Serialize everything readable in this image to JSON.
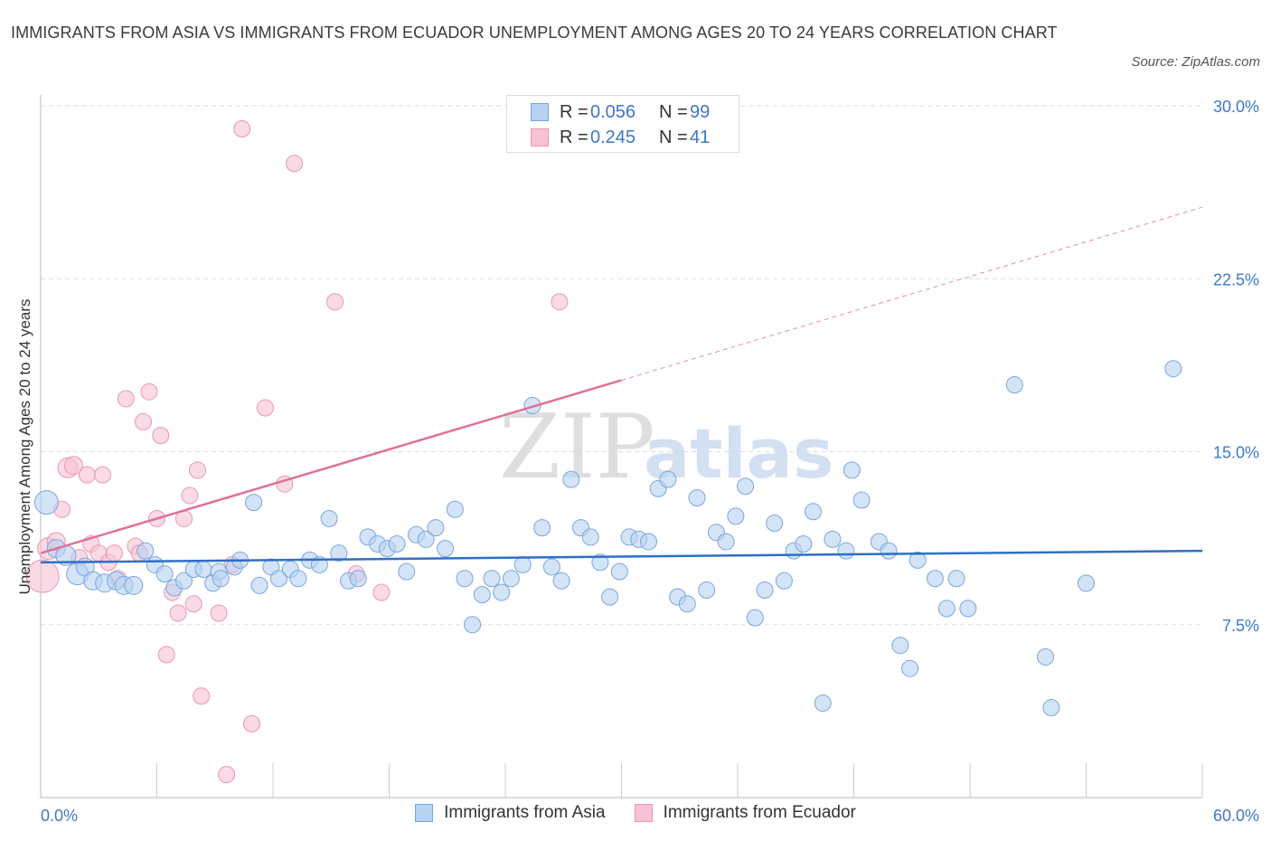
{
  "title": "IMMIGRANTS FROM ASIA VS IMMIGRANTS FROM ECUADOR UNEMPLOYMENT AMONG AGES 20 TO 24 YEARS CORRELATION CHART",
  "source": "Source: ZipAtlas.com",
  "watermark": {
    "zip": "ZIP",
    "atlas": "atlas"
  },
  "legend": {
    "r_label": "R =",
    "n_label": "N =",
    "asia": {
      "r": "0.056",
      "n": "99"
    },
    "ecuador": {
      "r": "0.245",
      "n": "41"
    }
  },
  "colors": {
    "asia_fill": "#b7d2f2",
    "asia_stroke": "#7aa6dc",
    "asia_line": "#2f6fc6",
    "ecuador_fill": "#f7c3d3",
    "ecuador_stroke": "#e897b1",
    "ecuador_line": "#e07098",
    "axis_label": "#3d78c8"
  },
  "chart_data": {
    "type": "scatter",
    "title": "IMMIGRANTS FROM ASIA VS IMMIGRANTS FROM ECUADOR UNEMPLOYMENT AMONG AGES 20 TO 24 YEARS CORRELATION CHART",
    "xlabel": "",
    "ylabel": "Unemployment Among Ages 20 to 24 years",
    "xlim": [
      0,
      60
    ],
    "ylim": [
      0,
      30
    ],
    "x_tick_labels": [
      "0.0%",
      "60.0%"
    ],
    "y_ticks": [
      7.5,
      15.0,
      22.5,
      30.0
    ],
    "y_tick_labels": [
      "7.5%",
      "15.0%",
      "22.5%",
      "30.0%"
    ],
    "grid": true,
    "legend_position": "bottom",
    "series": [
      {
        "name": "Immigrants from Asia",
        "r": 0.056,
        "n": 99,
        "trend": {
          "x": [
            0,
            60
          ],
          "y": [
            10.2,
            10.7
          ]
        },
        "points": [
          [
            0.3,
            12.8,
            13
          ],
          [
            0.8,
            10.8,
            10
          ],
          [
            1.3,
            10.5,
            11
          ],
          [
            1.9,
            9.7,
            12
          ],
          [
            2.3,
            10.0,
            10
          ],
          [
            2.7,
            9.4,
            10
          ],
          [
            3.3,
            9.3,
            10
          ],
          [
            3.9,
            9.4,
            10
          ],
          [
            4.3,
            9.2,
            10
          ],
          [
            4.8,
            9.2,
            10
          ],
          [
            5.4,
            10.7,
            9
          ],
          [
            5.9,
            10.1,
            9
          ],
          [
            6.4,
            9.7,
            9
          ],
          [
            6.9,
            9.1,
            9
          ],
          [
            7.4,
            9.4,
            9
          ],
          [
            7.9,
            9.9,
            9
          ],
          [
            8.4,
            9.9,
            9
          ],
          [
            8.9,
            9.3,
            9
          ],
          [
            9.2,
            9.8,
            9
          ],
          [
            9.3,
            9.5,
            9
          ],
          [
            10.0,
            10.0,
            9
          ],
          [
            10.3,
            10.3,
            9
          ],
          [
            11.0,
            12.8,
            9
          ],
          [
            11.3,
            9.2,
            9
          ],
          [
            11.9,
            10.0,
            9
          ],
          [
            12.3,
            9.5,
            9
          ],
          [
            12.9,
            9.9,
            9
          ],
          [
            13.3,
            9.5,
            9
          ],
          [
            13.9,
            10.3,
            9
          ],
          [
            14.4,
            10.1,
            9
          ],
          [
            14.9,
            12.1,
            9
          ],
          [
            15.4,
            10.6,
            9
          ],
          [
            15.9,
            9.4,
            9
          ],
          [
            16.4,
            9.5,
            9
          ],
          [
            16.9,
            11.3,
            9
          ],
          [
            17.4,
            11.0,
            9
          ],
          [
            17.9,
            10.8,
            9
          ],
          [
            18.4,
            11.0,
            9
          ],
          [
            18.9,
            9.8,
            9
          ],
          [
            19.4,
            11.4,
            9
          ],
          [
            19.9,
            11.2,
            9
          ],
          [
            20.4,
            11.7,
            9
          ],
          [
            20.9,
            10.8,
            9
          ],
          [
            21.4,
            12.5,
            9
          ],
          [
            21.9,
            9.5,
            9
          ],
          [
            22.3,
            7.5,
            9
          ],
          [
            22.8,
            8.8,
            9
          ],
          [
            23.3,
            9.5,
            9
          ],
          [
            23.8,
            8.9,
            9
          ],
          [
            24.3,
            9.5,
            9
          ],
          [
            24.9,
            10.1,
            9
          ],
          [
            25.4,
            17.0,
            9
          ],
          [
            25.9,
            11.7,
            9
          ],
          [
            26.4,
            10.0,
            9
          ],
          [
            26.9,
            9.4,
            9
          ],
          [
            27.4,
            13.8,
            9
          ],
          [
            27.9,
            11.7,
            9
          ],
          [
            28.4,
            11.3,
            9
          ],
          [
            28.9,
            10.2,
            9
          ],
          [
            29.4,
            8.7,
            9
          ],
          [
            29.9,
            9.8,
            9
          ],
          [
            30.4,
            11.3,
            9
          ],
          [
            30.9,
            11.2,
            9
          ],
          [
            31.4,
            11.1,
            9
          ],
          [
            31.9,
            13.4,
            9
          ],
          [
            32.4,
            13.8,
            9
          ],
          [
            32.9,
            8.7,
            9
          ],
          [
            33.4,
            8.4,
            9
          ],
          [
            33.9,
            13.0,
            9
          ],
          [
            34.4,
            9.0,
            9
          ],
          [
            34.9,
            11.5,
            9
          ],
          [
            35.4,
            11.1,
            9
          ],
          [
            35.9,
            12.2,
            9
          ],
          [
            36.4,
            13.5,
            9
          ],
          [
            36.9,
            7.8,
            9
          ],
          [
            37.4,
            9.0,
            9
          ],
          [
            37.9,
            11.9,
            9
          ],
          [
            38.4,
            9.4,
            9
          ],
          [
            38.9,
            10.7,
            9
          ],
          [
            39.4,
            11.0,
            9
          ],
          [
            39.9,
            12.4,
            9
          ],
          [
            40.4,
            4.1,
            9
          ],
          [
            40.9,
            11.2,
            9
          ],
          [
            41.6,
            10.7,
            9
          ],
          [
            41.9,
            14.2,
            9
          ],
          [
            42.4,
            12.9,
            9
          ],
          [
            43.3,
            11.1,
            9
          ],
          [
            43.8,
            10.7,
            9
          ],
          [
            44.4,
            6.6,
            9
          ],
          [
            44.9,
            5.6,
            9
          ],
          [
            45.3,
            10.3,
            9
          ],
          [
            46.2,
            9.5,
            9
          ],
          [
            46.8,
            8.2,
            9
          ],
          [
            47.3,
            9.5,
            9
          ],
          [
            47.9,
            8.2,
            9
          ],
          [
            50.3,
            17.9,
            9
          ],
          [
            51.9,
            6.1,
            9
          ],
          [
            52.2,
            3.9,
            9
          ],
          [
            54.0,
            9.3,
            9
          ],
          [
            58.5,
            18.6,
            9
          ]
        ]
      },
      {
        "name": "Immigrants from Ecuador",
        "r": 0.245,
        "n": 41,
        "trend": {
          "x": [
            0,
            30
          ],
          "y": [
            10.6,
            18.1
          ]
        },
        "trend_ext": {
          "x": [
            30,
            60
          ],
          "y": [
            18.1,
            25.6
          ]
        },
        "points": [
          [
            0.1,
            9.6,
            18
          ],
          [
            0.4,
            10.8,
            12
          ],
          [
            0.8,
            11.1,
            10
          ],
          [
            1.1,
            12.5,
            9
          ],
          [
            1.4,
            14.3,
            11
          ],
          [
            1.7,
            14.4,
            10
          ],
          [
            2.0,
            10.4,
            9
          ],
          [
            2.4,
            14.0,
            9
          ],
          [
            2.6,
            11.0,
            9
          ],
          [
            3.0,
            10.6,
            9
          ],
          [
            3.2,
            14.0,
            9
          ],
          [
            3.5,
            10.2,
            9
          ],
          [
            3.8,
            10.6,
            9
          ],
          [
            4.0,
            9.5,
            9
          ],
          [
            4.4,
            17.3,
            9
          ],
          [
            4.9,
            10.9,
            9
          ],
          [
            5.1,
            10.6,
            9
          ],
          [
            5.3,
            16.3,
            9
          ],
          [
            5.6,
            17.6,
            9
          ],
          [
            6.0,
            12.1,
            9
          ],
          [
            6.2,
            15.7,
            9
          ],
          [
            6.5,
            6.2,
            9
          ],
          [
            6.8,
            8.9,
            9
          ],
          [
            7.1,
            8.0,
            9
          ],
          [
            7.4,
            12.1,
            9
          ],
          [
            7.7,
            13.1,
            9
          ],
          [
            7.9,
            8.4,
            9
          ],
          [
            8.1,
            14.2,
            9
          ],
          [
            8.3,
            4.4,
            9
          ],
          [
            9.2,
            8.0,
            9
          ],
          [
            9.6,
            1.0,
            9
          ],
          [
            9.9,
            10.1,
            9
          ],
          [
            10.4,
            29.0,
            9
          ],
          [
            10.9,
            3.2,
            9
          ],
          [
            11.6,
            16.9,
            9
          ],
          [
            12.6,
            13.6,
            9
          ],
          [
            13.1,
            27.5,
            9
          ],
          [
            15.2,
            21.5,
            9
          ],
          [
            16.3,
            9.7,
            9
          ],
          [
            17.6,
            8.9,
            9
          ],
          [
            26.8,
            21.5,
            9
          ]
        ]
      }
    ]
  },
  "bottom_legend": {
    "asia": "Immigrants from Asia",
    "ecuador": "Immigrants from Ecuador"
  }
}
